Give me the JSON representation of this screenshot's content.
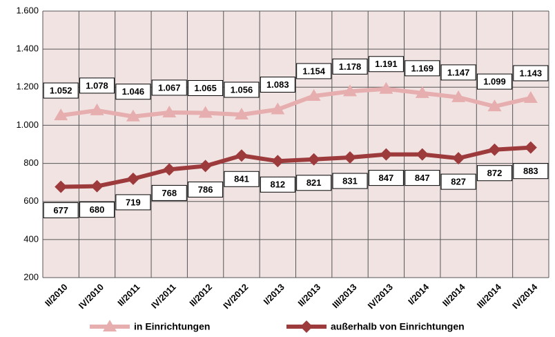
{
  "chart_data": {
    "type": "line",
    "categories": [
      "II/2010",
      "IV/2010",
      "II/2011",
      "IV/2011",
      "II/2012",
      "IV/2012",
      "I/2013",
      "II/2013",
      "III/2013",
      "IV/2013",
      "I/2014",
      "II/2014",
      "III/2014",
      "IV/2014"
    ],
    "series": [
      {
        "name": "in Einrichtungen",
        "color": "#e6aeae",
        "marker": "triangle",
        "values": [
          1052,
          1078,
          1046,
          1067,
          1065,
          1056,
          1083,
          1154,
          1178,
          1191,
          1169,
          1147,
          1099,
          1143
        ],
        "value_labels": [
          "1.052",
          "1.078",
          "1.046",
          "1.067",
          "1.065",
          "1.056",
          "1.083",
          "1.154",
          "1.178",
          "1.191",
          "1.169",
          "1.147",
          "1.099",
          "1.143"
        ]
      },
      {
        "name": "außerhalb von Einrichtungen",
        "color": "#9c3a3c",
        "marker": "diamond",
        "values": [
          677,
          680,
          719,
          768,
          786,
          841,
          812,
          821,
          831,
          847,
          847,
          827,
          872,
          883
        ]
      }
    ],
    "ylim": [
      200,
      1600
    ],
    "yticks": [
      200,
      400,
      600,
      800,
      {
        "value": 1000,
        "label": "1.000"
      },
      {
        "value": 1200,
        "label": "1.200"
      },
      {
        "value": 1400,
        "label": "1.400"
      },
      {
        "value": 1600,
        "label": "1.600"
      }
    ],
    "grid": true
  }
}
